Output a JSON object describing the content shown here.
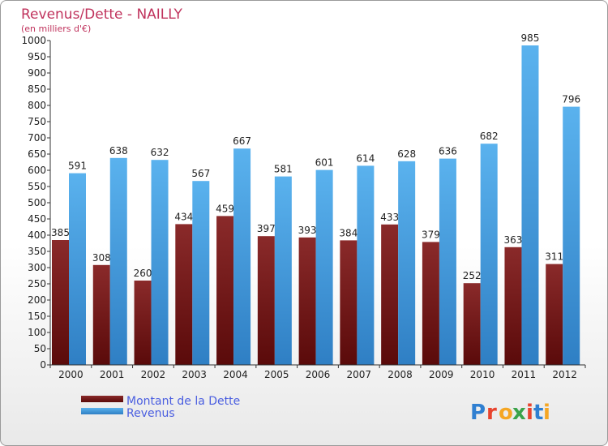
{
  "chart_data": {
    "type": "bar",
    "title": "Revenus/Dette - NAILLY",
    "subtitle": "(en milliers d'€)",
    "categories": [
      "2000",
      "2001",
      "2002",
      "2003",
      "2004",
      "2005",
      "2006",
      "2007",
      "2008",
      "2009",
      "2010",
      "2011",
      "2012"
    ],
    "series": [
      {
        "name": "Montant de la Dette",
        "color": "#7a1a1a",
        "values": [
          385,
          308,
          260,
          434,
          459,
          397,
          393,
          384,
          433,
          379,
          252,
          363,
          311
        ]
      },
      {
        "name": "Revenus",
        "color": "#4da6e8",
        "values": [
          591,
          638,
          632,
          567,
          667,
          581,
          601,
          614,
          628,
          636,
          682,
          985,
          796
        ]
      }
    ],
    "ylim": [
      0,
      1000
    ],
    "ytick_step": 50,
    "grid": false,
    "legend_position": "bottom-left"
  },
  "logo": {
    "text": "Proxiti",
    "letter_colors": [
      "#2f7fd1",
      "#e8442e",
      "#f5a623",
      "#3aa34a",
      "#e8442e",
      "#2f7fd1",
      "#f5a623"
    ]
  }
}
